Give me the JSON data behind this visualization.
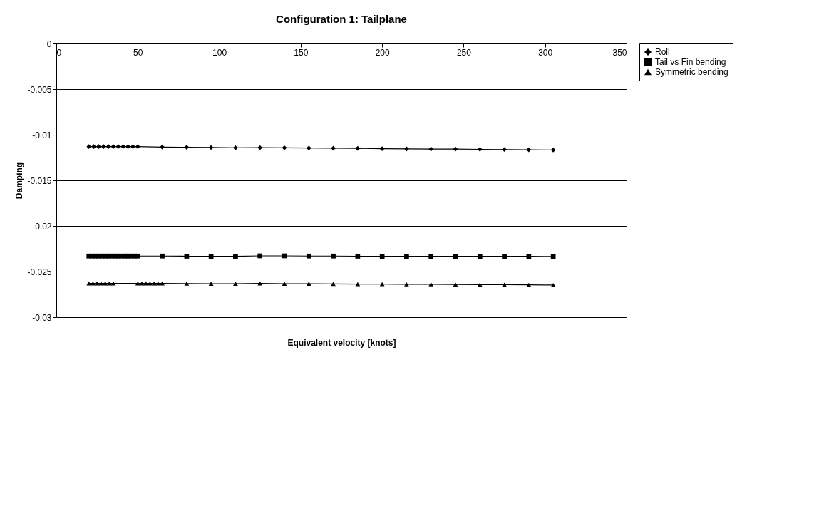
{
  "chart_data": {
    "type": "line",
    "title": "Configuration 1: Tailplane",
    "xlabel": "Equivalent velocity [knots]",
    "ylabel": "Damping",
    "xlim": [
      0,
      350
    ],
    "xticks": [
      0,
      50,
      100,
      150,
      200,
      250,
      300,
      350
    ],
    "ylim": [
      -0.03,
      0
    ],
    "yticks": [
      0,
      -0.005,
      -0.01,
      -0.015,
      -0.02,
      -0.025,
      -0.03
    ],
    "grid": "y",
    "legend": "right",
    "line_style": "solid",
    "series": [
      {
        "name": "Roll",
        "color": "#000000",
        "marker": "diamond",
        "x": [
          20,
          23,
          26,
          29,
          32,
          35,
          38,
          41,
          44,
          47,
          50,
          65,
          80,
          95,
          110,
          125,
          140,
          155,
          170,
          185,
          200,
          215,
          230,
          245,
          260,
          275,
          290,
          305
        ],
        "values": [
          -0.0113,
          -0.0113,
          -0.0113,
          -0.0113,
          -0.0113,
          -0.0113,
          -0.0113,
          -0.0113,
          -0.0113,
          -0.0113,
          -0.0113,
          -0.01135,
          -0.01137,
          -0.0114,
          -0.01143,
          -0.01142,
          -0.01143,
          -0.01146,
          -0.01148,
          -0.0115,
          -0.01153,
          -0.01155,
          -0.01157,
          -0.01158,
          -0.0116,
          -0.01162,
          -0.01165,
          -0.01167
        ]
      },
      {
        "name": "Tail vs Fin bending",
        "color": "#000000",
        "marker": "square",
        "x": [
          20,
          22,
          24,
          26,
          28,
          30,
          32,
          34,
          36,
          38,
          40,
          42,
          44,
          46,
          48,
          50,
          65,
          80,
          95,
          110,
          125,
          140,
          155,
          170,
          185,
          200,
          215,
          230,
          245,
          260,
          275,
          290,
          305
        ],
        "values": [
          -0.0233,
          -0.0233,
          -0.0233,
          -0.0233,
          -0.0233,
          -0.0233,
          -0.0233,
          -0.0233,
          -0.0233,
          -0.0233,
          -0.0233,
          -0.0233,
          -0.0233,
          -0.0233,
          -0.0233,
          -0.0233,
          -0.0233,
          -0.02332,
          -0.02333,
          -0.02333,
          -0.02328,
          -0.02328,
          -0.0233,
          -0.0233,
          -0.02332,
          -0.02333,
          -0.02333,
          -0.02333,
          -0.02333,
          -0.02333,
          -0.02333,
          -0.02333,
          -0.02335
        ]
      },
      {
        "name": "Symmetric bending",
        "color": "#000000",
        "marker": "triangle",
        "x": [
          20,
          22.5,
          25,
          27.5,
          30,
          32.5,
          35,
          50,
          52.5,
          55,
          57.5,
          60,
          62.5,
          65,
          80,
          95,
          110,
          125,
          140,
          155,
          170,
          185,
          200,
          215,
          230,
          245,
          260,
          275,
          290,
          305
        ],
        "values": [
          -0.0263,
          -0.0263,
          -0.0263,
          -0.0263,
          -0.0263,
          -0.0263,
          -0.0263,
          -0.0263,
          -0.0263,
          -0.0263,
          -0.0263,
          -0.0263,
          -0.0263,
          -0.0263,
          -0.02632,
          -0.02633,
          -0.02633,
          -0.0263,
          -0.02633,
          -0.02633,
          -0.02635,
          -0.02637,
          -0.02638,
          -0.0264,
          -0.0264,
          -0.02642,
          -0.02643,
          -0.02643,
          -0.02645,
          -0.02648
        ]
      }
    ]
  }
}
